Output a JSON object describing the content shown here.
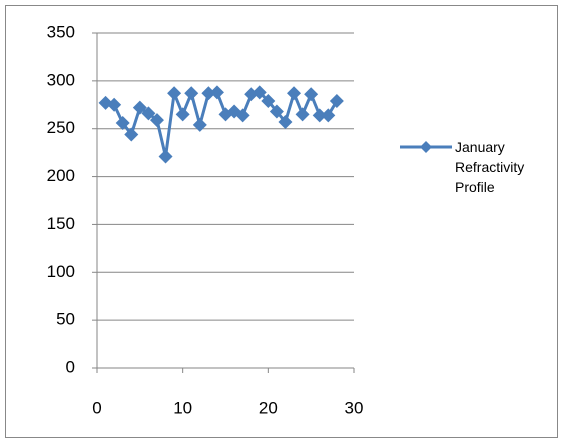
{
  "chart_data": {
    "type": "line",
    "x": [
      1,
      2,
      3,
      4,
      5,
      6,
      7,
      8,
      9,
      10,
      11,
      12,
      13,
      14,
      15,
      16,
      17,
      18,
      19,
      20,
      21,
      22,
      23,
      24,
      25,
      26,
      27,
      28
    ],
    "series": [
      {
        "name": "January Refractivity Profile",
        "color": "#4a7ebb",
        "values": [
          277,
          275,
          256,
          244,
          272,
          266,
          259,
          221,
          287,
          265,
          287,
          254,
          287,
          288,
          265,
          268,
          264,
          286,
          288,
          279,
          268,
          257,
          287,
          265,
          286,
          264,
          264,
          279
        ]
      }
    ],
    "xlim": [
      0,
      30
    ],
    "xticks": [
      0,
      10,
      20,
      30
    ],
    "ylim": [
      0,
      350
    ],
    "yticks": [
      0,
      50,
      100,
      150,
      200,
      250,
      300,
      350
    ],
    "grid": true,
    "legend": "right"
  }
}
